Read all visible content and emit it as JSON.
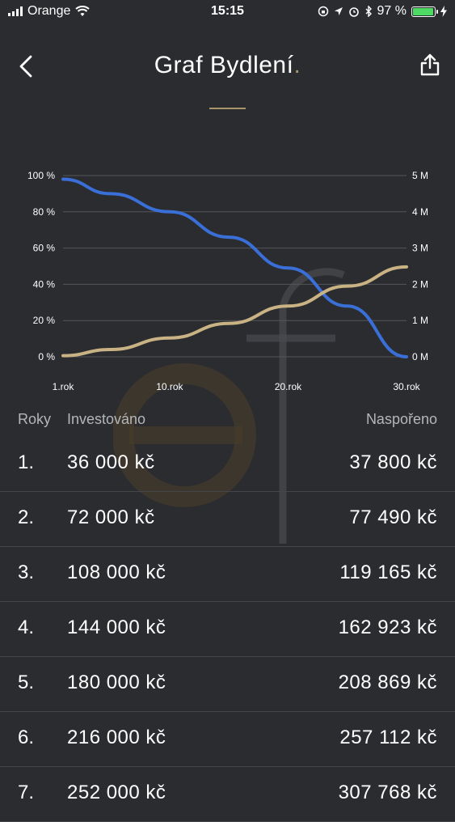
{
  "status_bar": {
    "carrier": "Orange",
    "time": "15:15",
    "battery": "97 %",
    "battery_level": 0.97
  },
  "header": {
    "title": "Graf Bydlení",
    "title_suffix": ".",
    "back_icon": "chevron-left-icon",
    "share_icon": "share-icon"
  },
  "chart_data": {
    "type": "line",
    "x": [
      1,
      5,
      10,
      15,
      20,
      25,
      30
    ],
    "x_tick_labels": [
      "1.rok",
      "10.rok",
      "20.rok",
      "30.rok"
    ],
    "x_tick_values": [
      1,
      10,
      20,
      30
    ],
    "y_left_ticks": [
      "100 %",
      "80 %",
      "60 %",
      "40 %",
      "20 %",
      "0 %"
    ],
    "y_left_range": [
      0,
      100
    ],
    "y_right_ticks": [
      "5 M",
      "4 M",
      "3 M",
      "2 M",
      "1 M",
      "0 M"
    ],
    "y_right_range": [
      0,
      5000000
    ],
    "grid": true,
    "series": [
      {
        "axis": "left",
        "color": "#3a6fd8",
        "values": [
          98,
          90,
          80,
          66,
          49,
          28,
          0
        ]
      },
      {
        "axis": "right",
        "color": "#c9b385",
        "values": [
          30000,
          200000,
          520000,
          920000,
          1400000,
          1950000,
          2480000
        ]
      }
    ]
  },
  "table": {
    "headers": {
      "year": "Roky",
      "invested": "Investováno",
      "saved": "Naspořeno"
    },
    "rows": [
      {
        "year": "1.",
        "invested": "36 000 kč",
        "saved": "37 800 kč"
      },
      {
        "year": "2.",
        "invested": "72 000 kč",
        "saved": "77 490 kč"
      },
      {
        "year": "3.",
        "invested": "108 000 kč",
        "saved": "119 165 kč"
      },
      {
        "year": "4.",
        "invested": "144 000 kč",
        "saved": "162 923 kč"
      },
      {
        "year": "5.",
        "invested": "180 000 kč",
        "saved": "208 869 kč"
      },
      {
        "year": "6.",
        "invested": "216 000 kč",
        "saved": "257 112 kč"
      },
      {
        "year": "7.",
        "invested": "252 000 kč",
        "saved": "307 768 kč"
      }
    ]
  },
  "colors": {
    "background": "#2b2c2f",
    "accent": "#a8956a"
  }
}
